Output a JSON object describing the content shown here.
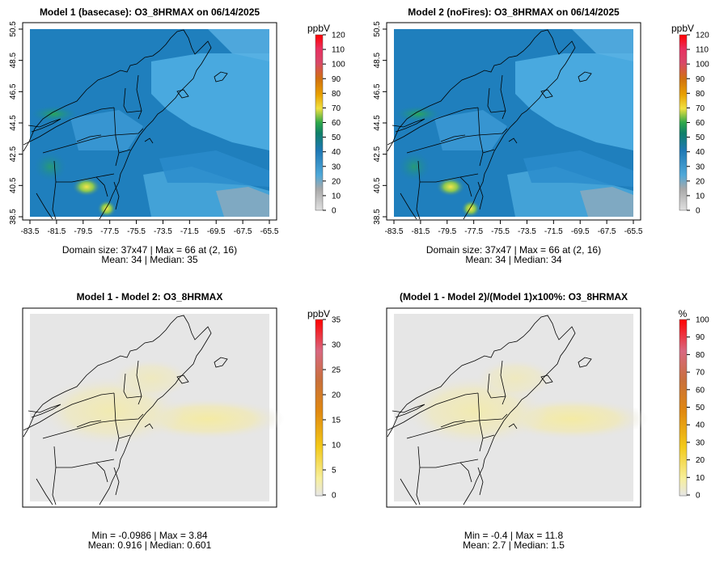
{
  "chart_data": [
    {
      "type": "heatmap",
      "title": "Model 1 (basecase): O3_8HRMAX on 06/14/2025",
      "xlabel": "",
      "ylabel": "",
      "x_ticks": [
        "-83.5",
        "-81.5",
        "-79.5",
        "-77.5",
        "-75.5",
        "-73.5",
        "-71.5",
        "-69.5",
        "-67.5",
        "-65.5"
      ],
      "y_ticks": [
        "38.5",
        "40.5",
        "42.5",
        "44.5",
        "46.5",
        "48.5",
        "50.5"
      ],
      "xlim": [
        -83.5,
        -65.5
      ],
      "ylim": [
        38.5,
        50.5
      ],
      "legend_unit": "ppbV",
      "legend_ticks": [
        "0",
        "10",
        "20",
        "30",
        "40",
        "50",
        "60",
        "70",
        "80",
        "90",
        "100",
        "110",
        "120"
      ],
      "legend_range": [
        0,
        120
      ],
      "stats_line1": "Domain size: 37x47 | Max = 66 at (2, 16)",
      "stats_line2": "Mean: 34 |  Median: 35"
    },
    {
      "type": "heatmap",
      "title": "Model 2 (noFires): O3_8HRMAX on 06/14/2025",
      "xlabel": "",
      "ylabel": "",
      "x_ticks": [
        "-83.5",
        "-81.5",
        "-79.5",
        "-77.5",
        "-75.5",
        "-73.5",
        "-71.5",
        "-69.5",
        "-67.5",
        "-65.5"
      ],
      "y_ticks": [
        "38.5",
        "40.5",
        "42.5",
        "44.5",
        "46.5",
        "48.5",
        "50.5"
      ],
      "xlim": [
        -83.5,
        -65.5
      ],
      "ylim": [
        38.5,
        50.5
      ],
      "legend_unit": "ppbV",
      "legend_ticks": [
        "0",
        "10",
        "20",
        "30",
        "40",
        "50",
        "60",
        "70",
        "80",
        "90",
        "100",
        "110",
        "120"
      ],
      "legend_range": [
        0,
        120
      ],
      "stats_line1": "Domain size: 37x47 | Max = 66 at (2, 16)",
      "stats_line2": "Mean: 34 |  Median: 34"
    },
    {
      "type": "heatmap",
      "title": "Model 1 - Model 2: O3_8HRMAX",
      "xlabel": "",
      "ylabel": "",
      "legend_unit": "ppbV",
      "legend_ticks": [
        "0",
        "5",
        "10",
        "15",
        "20",
        "25",
        "30",
        "35"
      ],
      "legend_range": [
        0,
        35
      ],
      "stats_line1": "Min = -0.0986 | Max = 3.84",
      "stats_line2": "Mean: 0.916 |  Median: 0.601"
    },
    {
      "type": "heatmap",
      "title": "(Model 1 - Model 2)/(Model 1)x100%: O3_8HRMAX",
      "xlabel": "",
      "ylabel": "",
      "legend_unit": "%",
      "legend_ticks": [
        "0",
        "10",
        "20",
        "30",
        "40",
        "50",
        "60",
        "70",
        "80",
        "90",
        "100"
      ],
      "legend_range": [
        0,
        100
      ],
      "stats_line1": "Min = -0.4 | Max = 11.8",
      "stats_line2": "Mean: 2.7 |  Median: 1.5"
    }
  ]
}
